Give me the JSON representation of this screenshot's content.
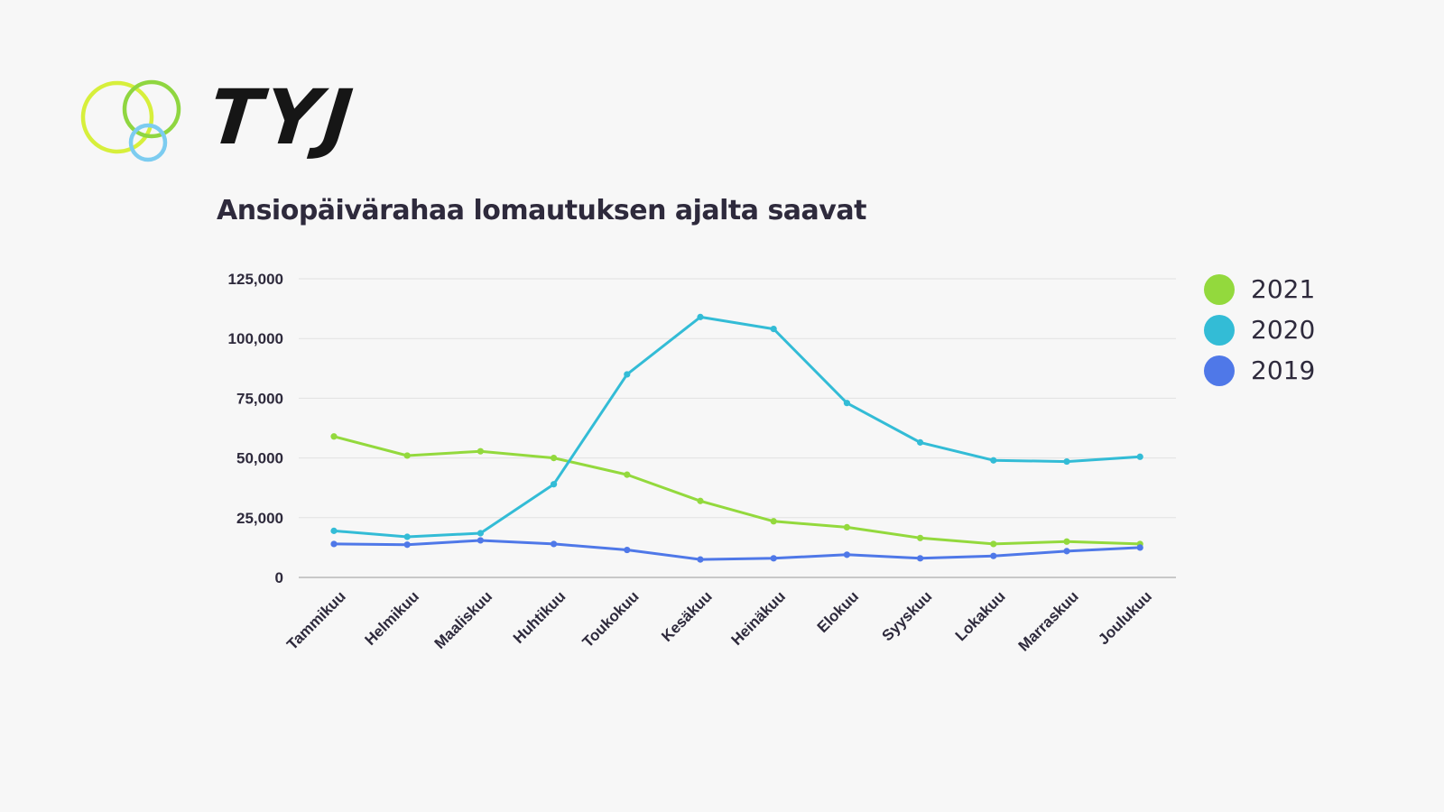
{
  "brand": {
    "logo_text": "TYJ",
    "ring_colors": [
      "#d7ef3b",
      "#8fd640",
      "#7cccf0"
    ]
  },
  "chart_data": {
    "type": "line",
    "title": "Ansiopäivärahaa lomautuksen ajalta saavat",
    "xlabel": "",
    "ylabel": "",
    "ylim": [
      0,
      125000
    ],
    "yticks": [
      0,
      25000,
      50000,
      75000,
      100000,
      125000
    ],
    "ytick_labels": [
      "0",
      "25,000",
      "50,000",
      "75,000",
      "100,000",
      "125,000"
    ],
    "grid": true,
    "legend_position": "right",
    "categories": [
      "Tammikuu",
      "Helmikuu",
      "Maaliskuu",
      "Huhtikuu",
      "Toukokuu",
      "Kesäkuu",
      "Heinäkuu",
      "Elokuu",
      "Syyskuu",
      "Lokakuu",
      "Marraskuu",
      "Joulukuu"
    ],
    "series": [
      {
        "name": "2021",
        "color": "#93d93d",
        "values": [
          59000,
          51000,
          52800,
          50000,
          43000,
          32000,
          23500,
          21000,
          16500,
          14000,
          15000,
          14000
        ]
      },
      {
        "name": "2020",
        "color": "#33bcd6",
        "values": [
          19500,
          17000,
          18500,
          39000,
          85000,
          109000,
          104000,
          73000,
          56500,
          49000,
          48500,
          50500
        ]
      },
      {
        "name": "2019",
        "color": "#4f78e8",
        "values": [
          14000,
          13700,
          15500,
          14000,
          11500,
          7500,
          8000,
          9500,
          8000,
          9000,
          11000,
          12500
        ]
      }
    ]
  }
}
